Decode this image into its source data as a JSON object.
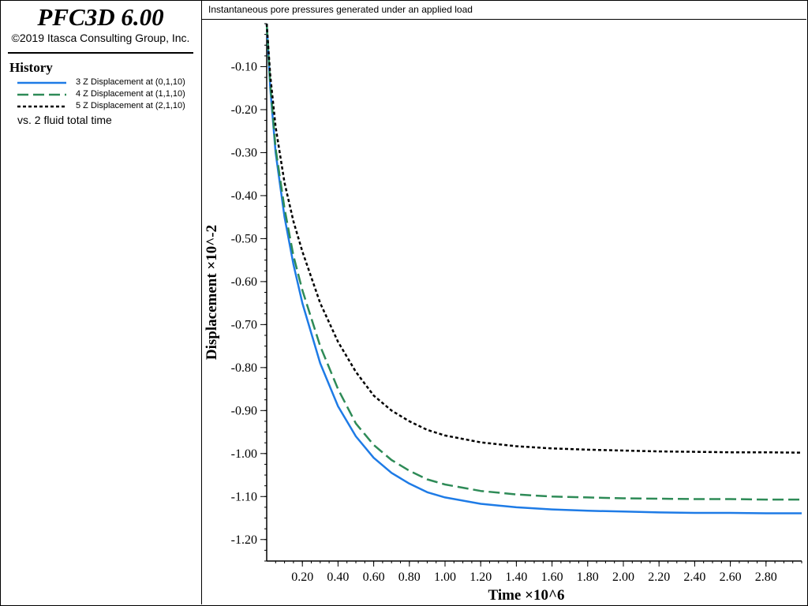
{
  "app": {
    "title": "PFC3D 6.00",
    "copyright": "©2019 Itasca Consulting Group, Inc."
  },
  "legend": {
    "heading": "History",
    "items": [
      {
        "label": "3 Z Displacement at (0,1,10)",
        "color": "#1e7be6",
        "style": "solid"
      },
      {
        "label": "4 Z Displacement at (1,1,10)",
        "color": "#2e8b57",
        "style": "dashed"
      },
      {
        "label": "5 Z Displacement at (2,1,10)",
        "color": "#000000",
        "style": "dotted"
      }
    ],
    "vs_label": "vs. 2 fluid total time"
  },
  "chart_data": {
    "type": "line",
    "title": "Instantaneous pore pressures generated under an applied load",
    "xlabel": "Time ×10^6",
    "ylabel": "Displacement ×10^-2",
    "xlim": [
      0,
      3.0
    ],
    "ylim": [
      -1.25,
      0.0
    ],
    "xticks": [
      0.2,
      0.4,
      0.6,
      0.8,
      1.0,
      1.2,
      1.4,
      1.6,
      1.8,
      2.0,
      2.2,
      2.4,
      2.6,
      2.8
    ],
    "xtick_labels": [
      "0.20",
      "0.40",
      "0.60",
      "0.80",
      "1.00",
      "1.20",
      "1.40",
      "1.60",
      "1.80",
      "2.00",
      "2.20",
      "2.40",
      "2.60",
      "2.80"
    ],
    "yticks": [
      -0.1,
      -0.2,
      -0.3,
      -0.4,
      -0.5,
      -0.6,
      -0.7,
      -0.8,
      -0.9,
      -1.0,
      -1.1,
      -1.2
    ],
    "ytick_labels": [
      "-0.10",
      "-0.20",
      "-0.30",
      "-0.40",
      "-0.50",
      "-0.60",
      "-0.70",
      "-0.80",
      "-0.90",
      "-1.00",
      "-1.10",
      "-1.20"
    ],
    "grid": false,
    "legend_position": "left panel",
    "x": [
      0.0,
      0.02,
      0.05,
      0.1,
      0.15,
      0.2,
      0.3,
      0.4,
      0.5,
      0.6,
      0.7,
      0.8,
      0.9,
      1.0,
      1.2,
      1.4,
      1.6,
      1.8,
      2.0,
      2.2,
      2.4,
      2.6,
      2.8,
      3.0
    ],
    "series": [
      {
        "name": "3 Z Displacement at (0,1,10)",
        "color": "#1e7be6",
        "dash": "solid",
        "values": [
          0.0,
          -0.15,
          -0.3,
          -0.45,
          -0.56,
          -0.65,
          -0.79,
          -0.89,
          -0.96,
          -1.01,
          -1.045,
          -1.07,
          -1.09,
          -1.102,
          -1.117,
          -1.125,
          -1.13,
          -1.133,
          -1.135,
          -1.137,
          -1.138,
          -1.138,
          -1.139,
          -1.139
        ]
      },
      {
        "name": "4 Z Displacement at (1,1,10)",
        "color": "#2e8b57",
        "dash": "dashed",
        "values": [
          0.0,
          -0.14,
          -0.29,
          -0.43,
          -0.54,
          -0.62,
          -0.75,
          -0.85,
          -0.93,
          -0.98,
          -1.015,
          -1.04,
          -1.06,
          -1.072,
          -1.087,
          -1.095,
          -1.1,
          -1.102,
          -1.104,
          -1.105,
          -1.106,
          -1.106,
          -1.107,
          -1.107
        ]
      },
      {
        "name": "5 Z Displacement at (2,1,10)",
        "color": "#000000",
        "dash": "dotted",
        "values": [
          0.0,
          -0.12,
          -0.24,
          -0.37,
          -0.46,
          -0.53,
          -0.65,
          -0.74,
          -0.81,
          -0.865,
          -0.9,
          -0.925,
          -0.945,
          -0.958,
          -0.974,
          -0.983,
          -0.988,
          -0.991,
          -0.993,
          -0.995,
          -0.996,
          -0.997,
          -0.997,
          -0.998
        ]
      }
    ]
  }
}
